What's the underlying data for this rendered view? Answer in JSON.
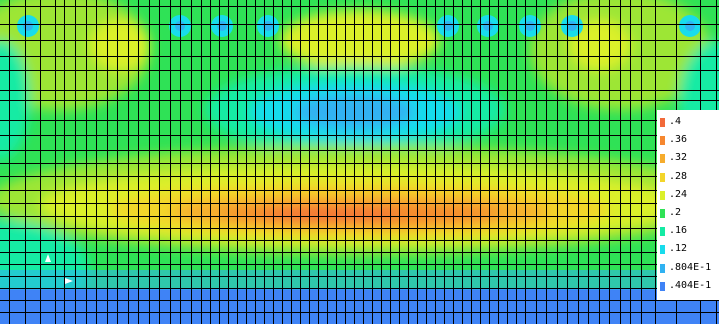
{
  "contour_plot": {
    "mesh_color": "#000000",
    "palette": [
      "#3f83f6",
      "#30b2f2",
      "#18dcec",
      "#14eba4",
      "#2fe256",
      "#9de636",
      "#dbf02a",
      "#f3d52a",
      "#f6ac2d",
      "#f6872f",
      "#f26a3a"
    ],
    "legend": [
      {
        "label": ".4",
        "color": "#f26a3a"
      },
      {
        "label": ".36",
        "color": "#f6872f"
      },
      {
        "label": ".32",
        "color": "#f6ac2d"
      },
      {
        "label": ".28",
        "color": "#f3d52a"
      },
      {
        "label": ".24",
        "color": "#dbf02a"
      },
      {
        "label": ".2",
        "color": "#2fe256"
      },
      {
        "label": ".16",
        "color": "#14eba4"
      },
      {
        "label": ".12",
        "color": "#18dcec"
      },
      {
        "label": ".804E-1",
        "color": "#30b2f2"
      },
      {
        "label": ".404E-1",
        "color": "#3f83f6"
      }
    ]
  }
}
